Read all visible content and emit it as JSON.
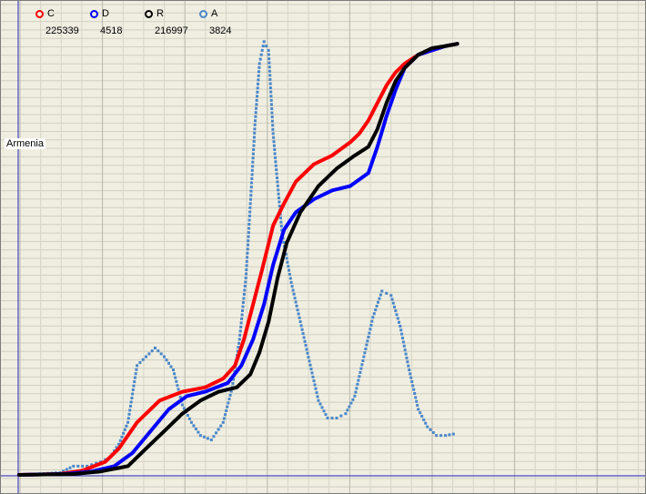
{
  "region_label": "Armenia",
  "legend": [
    {
      "key": "C",
      "count": "225339",
      "color": "#ff0000"
    },
    {
      "key": "D",
      "count": "4518",
      "color": "#0000ff"
    },
    {
      "key": "R",
      "count": "216997",
      "color": "#000000"
    },
    {
      "key": "A",
      "count": "3824",
      "color": "#4a86c8"
    }
  ],
  "chart_data": {
    "type": "line",
    "title": "",
    "xlabel": "",
    "ylabel": "",
    "grid": true,
    "legend_position": "top-left",
    "xlim": [
      0,
      710
    ],
    "ylim": [
      0,
      1
    ],
    "series": [
      {
        "name": "C",
        "color": "#ff0000",
        "style": "cumulative",
        "x": [
          20,
          65,
          90,
          115,
          130,
          150,
          175,
          200,
          225,
          245,
          258,
          268,
          278,
          288,
          300,
          312,
          325,
          345,
          365,
          385,
          395,
          405,
          415,
          425,
          435,
          445,
          460,
          475,
          490,
          503
        ],
        "y": [
          0.0,
          0.002,
          0.01,
          0.03,
          0.06,
          0.12,
          0.17,
          0.19,
          0.2,
          0.22,
          0.25,
          0.31,
          0.39,
          0.47,
          0.57,
          0.62,
          0.67,
          0.71,
          0.73,
          0.76,
          0.78,
          0.81,
          0.85,
          0.89,
          0.92,
          0.94,
          0.96,
          0.97,
          0.98,
          0.985
        ]
      },
      {
        "name": "D",
        "color": "#0000ff",
        "style": "cumulative",
        "x": [
          20,
          70,
          100,
          125,
          145,
          165,
          185,
          205,
          225,
          250,
          265,
          278,
          290,
          300,
          312,
          325,
          345,
          365,
          385,
          405,
          415,
          425,
          435,
          445,
          460,
          475,
          490,
          503
        ],
        "y": [
          0.0,
          0.002,
          0.008,
          0.02,
          0.05,
          0.1,
          0.15,
          0.18,
          0.19,
          0.21,
          0.25,
          0.31,
          0.39,
          0.48,
          0.56,
          0.6,
          0.63,
          0.65,
          0.66,
          0.69,
          0.75,
          0.82,
          0.88,
          0.93,
          0.96,
          0.97,
          0.98,
          0.985
        ]
      },
      {
        "name": "R",
        "color": "#000000",
        "style": "cumulative",
        "x": [
          20,
          80,
          110,
          140,
          160,
          180,
          200,
          220,
          240,
          260,
          275,
          285,
          295,
          305,
          315,
          330,
          350,
          370,
          390,
          405,
          415,
          425,
          435,
          445,
          460,
          475,
          490,
          503
        ],
        "y": [
          0.0,
          0.002,
          0.008,
          0.02,
          0.06,
          0.1,
          0.14,
          0.17,
          0.19,
          0.2,
          0.23,
          0.28,
          0.35,
          0.45,
          0.53,
          0.6,
          0.66,
          0.7,
          0.73,
          0.75,
          0.79,
          0.85,
          0.9,
          0.93,
          0.96,
          0.975,
          0.98,
          0.985
        ]
      },
      {
        "name": "A",
        "color": "#4a86c8",
        "style": "dots",
        "x": [
          20,
          65,
          80,
          95,
          110,
          120,
          130,
          140,
          150,
          160,
          170,
          180,
          190,
          200,
          210,
          220,
          232,
          245,
          255,
          263,
          270,
          275,
          280,
          285,
          290,
          295,
          300,
          310,
          320,
          330,
          340,
          350,
          360,
          370,
          380,
          390,
          400,
          410,
          420,
          430,
          440,
          450,
          460,
          470,
          480,
          490,
          503
        ],
        "y": [
          0.0,
          0.005,
          0.02,
          0.02,
          0.03,
          0.04,
          0.07,
          0.12,
          0.25,
          0.27,
          0.29,
          0.27,
          0.24,
          0.16,
          0.12,
          0.09,
          0.08,
          0.12,
          0.2,
          0.31,
          0.45,
          0.62,
          0.8,
          0.94,
          0.99,
          0.97,
          0.78,
          0.55,
          0.44,
          0.35,
          0.26,
          0.17,
          0.13,
          0.13,
          0.14,
          0.18,
          0.27,
          0.36,
          0.42,
          0.41,
          0.34,
          0.24,
          0.15,
          0.11,
          0.09,
          0.09,
          0.095
        ]
      }
    ]
  }
}
